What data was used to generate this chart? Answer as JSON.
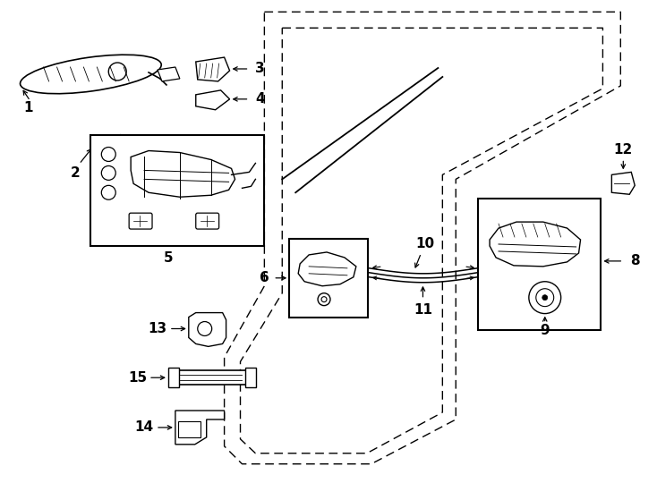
{
  "bg_color": "#ffffff",
  "line_color": "#000000",
  "figsize": [
    7.34,
    5.4
  ],
  "dpi": 100
}
